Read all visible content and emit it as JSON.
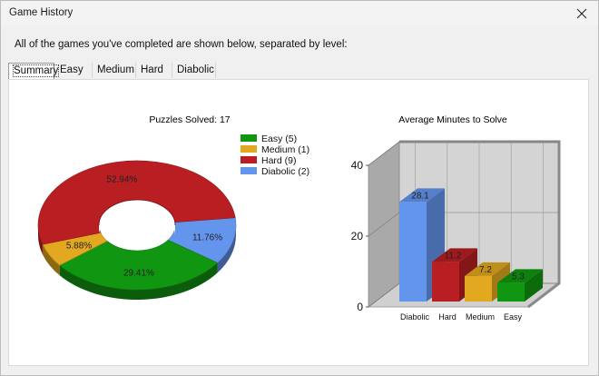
{
  "window": {
    "title": "Game History"
  },
  "description": "All of the games you've completed are shown below, separated by level:",
  "tabs": [
    {
      "label": "Summary",
      "active": true
    },
    {
      "label": "Easy",
      "active": false
    },
    {
      "label": "Medium",
      "active": false
    },
    {
      "label": "Hard",
      "active": false
    },
    {
      "label": "Diabolic",
      "active": false
    }
  ],
  "chart_data": [
    {
      "type": "pie",
      "title": "Puzzles Solved: 17",
      "labels": [
        "Easy",
        "Medium",
        "Hard",
        "Diabolic"
      ],
      "values": [
        5,
        1,
        9,
        2
      ],
      "percent_labels": [
        "29.41%",
        "5.88%",
        "52.94%",
        "11.76%"
      ],
      "legend": [
        "Easy (5)",
        "Medium (1)",
        "Hard (9)",
        "Diabolic (2)"
      ],
      "colors": [
        "#119611",
        "#e2a81f",
        "#b81e22",
        "#6495ed"
      ],
      "legend_position": "right"
    },
    {
      "type": "bar",
      "title": "Average Minutes to Solve",
      "categories": [
        "Diabolic",
        "Hard",
        "Medium",
        "Easy"
      ],
      "values": [
        28.1,
        11.2,
        7.2,
        5.3
      ],
      "value_labels": [
        "28.1",
        "11.2",
        "7.2",
        "5.3"
      ],
      "colors": [
        "#6495ed",
        "#b81e22",
        "#e2a81f",
        "#119611"
      ],
      "ylim": [
        0,
        40
      ],
      "yticks": [
        "0",
        "20",
        "40"
      ],
      "grid": true
    }
  ]
}
